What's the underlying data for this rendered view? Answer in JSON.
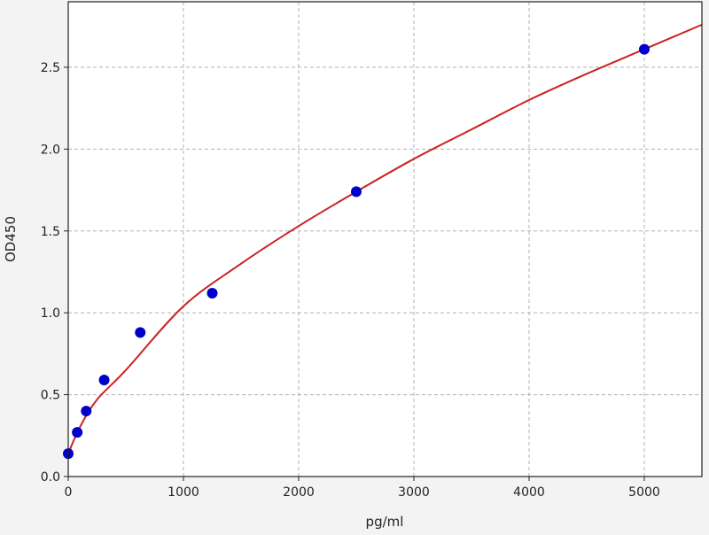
{
  "chart_data": {
    "type": "scatter",
    "title": "",
    "xlabel": "pg/ml",
    "ylabel": "OD450",
    "xlim": [
      0,
      5500
    ],
    "ylim": [
      0,
      2.9
    ],
    "xticks": [
      "0",
      "1000",
      "2000",
      "3000",
      "4000",
      "5000"
    ],
    "yticks": [
      "0.0",
      "0.5",
      "1.0",
      "1.5",
      "2.0",
      "2.5"
    ],
    "grid": true,
    "points": {
      "x": [
        0,
        78,
        156,
        312,
        625,
        1250,
        2500,
        5000
      ],
      "y": [
        0.14,
        0.27,
        0.4,
        0.59,
        0.88,
        1.12,
        1.74,
        2.61
      ],
      "color": "#0000cc"
    },
    "fit_curve": {
      "color": "#cc2222",
      "x": [
        0,
        100,
        250,
        500,
        1000,
        1500,
        2000,
        2500,
        3000,
        3500,
        4000,
        4500,
        5000,
        5500
      ],
      "y": [
        0.14,
        0.3,
        0.47,
        0.65,
        1.04,
        1.3,
        1.53,
        1.74,
        1.94,
        2.12,
        2.3,
        2.46,
        2.61,
        2.76
      ]
    }
  }
}
